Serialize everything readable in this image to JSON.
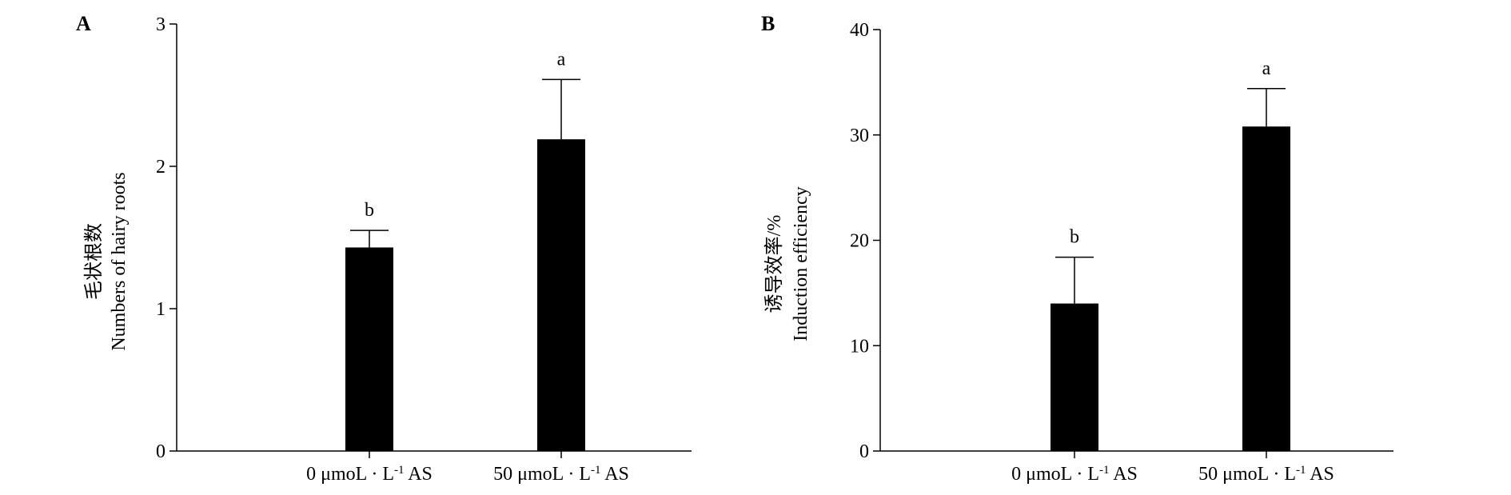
{
  "chart_data": [
    {
      "panel": "A",
      "type": "bar",
      "categories": [
        "0 μmoL · L",
        "50 μmoL · L"
      ],
      "category_superscript": "-1",
      "category_suffix": " AS",
      "values": [
        1.43,
        2.19
      ],
      "errors": [
        0.12,
        0.42
      ],
      "significance": [
        "b",
        "a"
      ],
      "ylabel_cn": "毛状根数",
      "ylabel_en": "Numbers of hairy roots",
      "ylim": [
        0,
        3
      ],
      "yticks": [
        0,
        1,
        2,
        3
      ],
      "bar_color": "#000000",
      "grid": false
    },
    {
      "panel": "B",
      "type": "bar",
      "categories": [
        "0 μmoL · L",
        "50 μmoL · L"
      ],
      "category_superscript": "-1",
      "category_suffix": " AS",
      "values": [
        14,
        30.8
      ],
      "errors": [
        4.4,
        3.6
      ],
      "significance": [
        "b",
        "a"
      ],
      "ylabel_cn": "诱导效率/%",
      "ylabel_en": "Induction efficiency",
      "ylim": [
        0,
        40
      ],
      "yticks": [
        0,
        10,
        20,
        30,
        40
      ],
      "bar_color": "#000000",
      "grid": false
    }
  ]
}
